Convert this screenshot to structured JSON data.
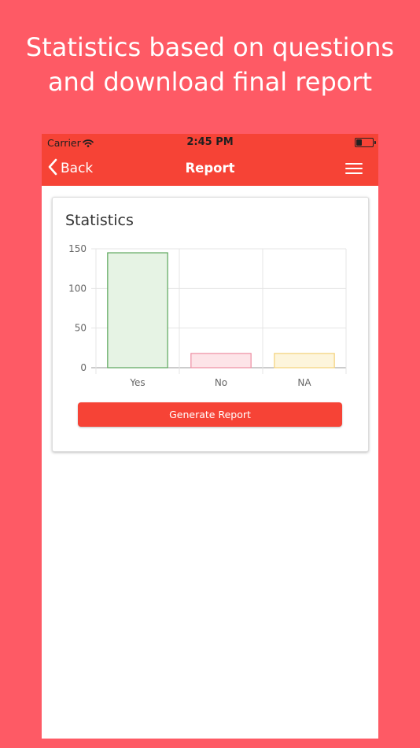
{
  "promo": {
    "line1": "Statistics based on questions",
    "line2": "and download final report"
  },
  "status_bar": {
    "carrier": "Carrier",
    "time": "2:45 PM"
  },
  "nav": {
    "back_label": "Back",
    "title": "Report"
  },
  "card": {
    "title": "Statistics",
    "button_label": "Generate Report"
  },
  "colors": {
    "background": "#fe5a65",
    "header": "#f64336",
    "accent": "#f64336"
  },
  "icons": {
    "back": "chevron-left-icon",
    "menu": "hamburger-menu-icon",
    "wifi": "wifi-icon",
    "battery": "battery-icon"
  },
  "chart_data": {
    "type": "bar",
    "categories": [
      "Yes",
      "No",
      "NA"
    ],
    "values": [
      145,
      18,
      18
    ],
    "ylim": [
      0,
      150
    ],
    "yticks": [
      0,
      50,
      100,
      150
    ],
    "grid": true,
    "legend": "none",
    "bar_fill_colors": [
      "#e6f3e4",
      "#fde4e8",
      "#fdf5dc"
    ],
    "bar_border_colors": [
      "#5aa65a",
      "#ee8ea2",
      "#f4d27a"
    ]
  }
}
